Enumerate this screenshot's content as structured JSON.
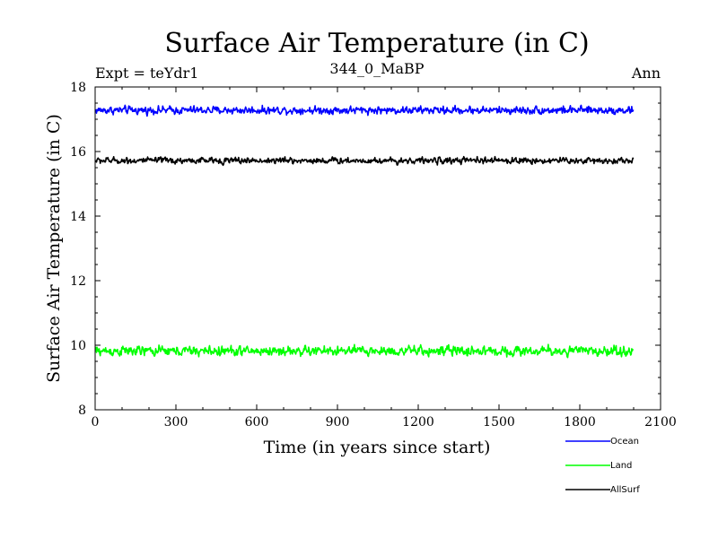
{
  "chart_data": {
    "type": "line",
    "title": "Surface Air Temperature (in C)",
    "subtitle_left": "Expt = teYdr1",
    "subtitle_center": "344_0_MaBP",
    "subtitle_right": "Ann",
    "xlabel": "Time (in years since start)",
    "ylabel": "Surface Air Temperature (in C)",
    "xlim": [
      0,
      2100
    ],
    "ylim": [
      8,
      18
    ],
    "xticks": [
      0,
      300,
      600,
      900,
      1200,
      1500,
      1800,
      2100
    ],
    "yticks": [
      8,
      10,
      12,
      14,
      16,
      18
    ],
    "x_range_of_series": [
      1,
      2000
    ],
    "series": [
      {
        "name": "Ocean",
        "color": "#0000ff",
        "mean": 17.28,
        "amplitude": 0.22,
        "min": 16.95,
        "max": 17.55
      },
      {
        "name": "Land",
        "color": "#00ff00",
        "mean": 9.82,
        "amplitude": 0.28,
        "min": 9.3,
        "max": 10.35
      },
      {
        "name": "AllSurf",
        "color": "#000000",
        "mean": 15.72,
        "amplitude": 0.18,
        "min": 15.4,
        "max": 16.0
      }
    ]
  }
}
